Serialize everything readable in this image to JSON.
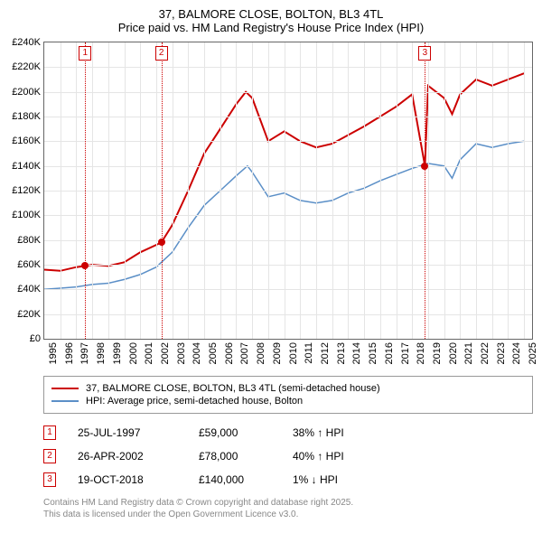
{
  "title": {
    "line1": "37, BALMORE CLOSE, BOLTON, BL3 4TL",
    "line2": "Price paid vs. HM Land Registry's House Price Index (HPI)"
  },
  "chart": {
    "type": "line",
    "background_color": "#ffffff",
    "grid_color": "#e5e5e5",
    "border_color": "#666666",
    "x_years": [
      1995,
      1996,
      1997,
      1998,
      1999,
      2000,
      2001,
      2002,
      2003,
      2004,
      2005,
      2006,
      2007,
      2008,
      2009,
      2010,
      2011,
      2012,
      2013,
      2014,
      2015,
      2016,
      2017,
      2018,
      2019,
      2020,
      2021,
      2022,
      2023,
      2024,
      2025
    ],
    "x_min": 1995,
    "x_max": 2025.5,
    "y_ticks": [
      0,
      20000,
      40000,
      60000,
      80000,
      100000,
      120000,
      140000,
      160000,
      180000,
      200000,
      220000,
      240000
    ],
    "y_tick_labels": [
      "£0",
      "£20K",
      "£40K",
      "£60K",
      "£80K",
      "£100K",
      "£120K",
      "£140K",
      "£160K",
      "£180K",
      "£200K",
      "£220K",
      "£240K"
    ],
    "y_min": 0,
    "y_max": 240000,
    "label_fontsize": 11,
    "series": [
      {
        "name": "37, BALMORE CLOSE, BOLTON, BL3 4TL (semi-detached house)",
        "color": "#cc0000",
        "line_width": 2,
        "points": [
          [
            1995,
            56000
          ],
          [
            1996,
            55000
          ],
          [
            1997,
            58000
          ],
          [
            1997.56,
            59000
          ],
          [
            1998,
            60000
          ],
          [
            1999,
            59000
          ],
          [
            2000,
            62000
          ],
          [
            2001,
            70000
          ],
          [
            2002,
            76000
          ],
          [
            2002.32,
            78000
          ],
          [
            2003,
            92000
          ],
          [
            2004,
            120000
          ],
          [
            2005,
            150000
          ],
          [
            2006,
            170000
          ],
          [
            2007,
            190000
          ],
          [
            2007.6,
            200000
          ],
          [
            2008,
            195000
          ],
          [
            2009,
            160000
          ],
          [
            2010,
            168000
          ],
          [
            2011,
            160000
          ],
          [
            2012,
            155000
          ],
          [
            2013,
            158000
          ],
          [
            2014,
            165000
          ],
          [
            2015,
            172000
          ],
          [
            2016,
            180000
          ],
          [
            2017,
            188000
          ],
          [
            2018,
            198000
          ],
          [
            2018.8,
            140000
          ],
          [
            2019,
            205000
          ],
          [
            2020,
            195000
          ],
          [
            2020.5,
            182000
          ],
          [
            2021,
            198000
          ],
          [
            2022,
            210000
          ],
          [
            2023,
            205000
          ],
          [
            2024,
            210000
          ],
          [
            2025,
            215000
          ]
        ]
      },
      {
        "name": "HPI: Average price, semi-detached house, Bolton",
        "color": "#5b8fc7",
        "line_width": 1.5,
        "points": [
          [
            1995,
            40000
          ],
          [
            1996,
            41000
          ],
          [
            1997,
            42000
          ],
          [
            1998,
            44000
          ],
          [
            1999,
            45000
          ],
          [
            2000,
            48000
          ],
          [
            2001,
            52000
          ],
          [
            2002,
            58000
          ],
          [
            2003,
            70000
          ],
          [
            2004,
            90000
          ],
          [
            2005,
            108000
          ],
          [
            2006,
            120000
          ],
          [
            2007,
            132000
          ],
          [
            2007.7,
            140000
          ],
          [
            2008,
            135000
          ],
          [
            2009,
            115000
          ],
          [
            2010,
            118000
          ],
          [
            2011,
            112000
          ],
          [
            2012,
            110000
          ],
          [
            2013,
            112000
          ],
          [
            2014,
            118000
          ],
          [
            2015,
            122000
          ],
          [
            2016,
            128000
          ],
          [
            2017,
            133000
          ],
          [
            2018,
            138000
          ],
          [
            2019,
            142000
          ],
          [
            2020,
            140000
          ],
          [
            2020.5,
            130000
          ],
          [
            2021,
            145000
          ],
          [
            2022,
            158000
          ],
          [
            2023,
            155000
          ],
          [
            2024,
            158000
          ],
          [
            2025,
            160000
          ]
        ]
      }
    ],
    "markers": [
      {
        "n": "1",
        "year": 1997.56,
        "value": 59000
      },
      {
        "n": "2",
        "year": 2002.32,
        "value": 78000
      },
      {
        "n": "3",
        "year": 2018.8,
        "value": 140000
      }
    ],
    "marker_box_border": "#cc0000",
    "marker_vline_color": "#cc0000"
  },
  "legend": {
    "items": [
      {
        "color": "#cc0000",
        "label": "37, BALMORE CLOSE, BOLTON, BL3 4TL (semi-detached house)",
        "width": 2
      },
      {
        "color": "#5b8fc7",
        "label": "HPI: Average price, semi-detached house, Bolton",
        "width": 1.5
      }
    ]
  },
  "annotations": [
    {
      "n": "1",
      "date": "25-JUL-1997",
      "price": "£59,000",
      "pct": "38% ↑ HPI"
    },
    {
      "n": "2",
      "date": "26-APR-2002",
      "price": "£78,000",
      "pct": "40% ↑ HPI"
    },
    {
      "n": "3",
      "date": "19-OCT-2018",
      "price": "£140,000",
      "pct": "1% ↓ HPI"
    }
  ],
  "footer": {
    "line1": "Contains HM Land Registry data © Crown copyright and database right 2025.",
    "line2": "This data is licensed under the Open Government Licence v3.0."
  }
}
